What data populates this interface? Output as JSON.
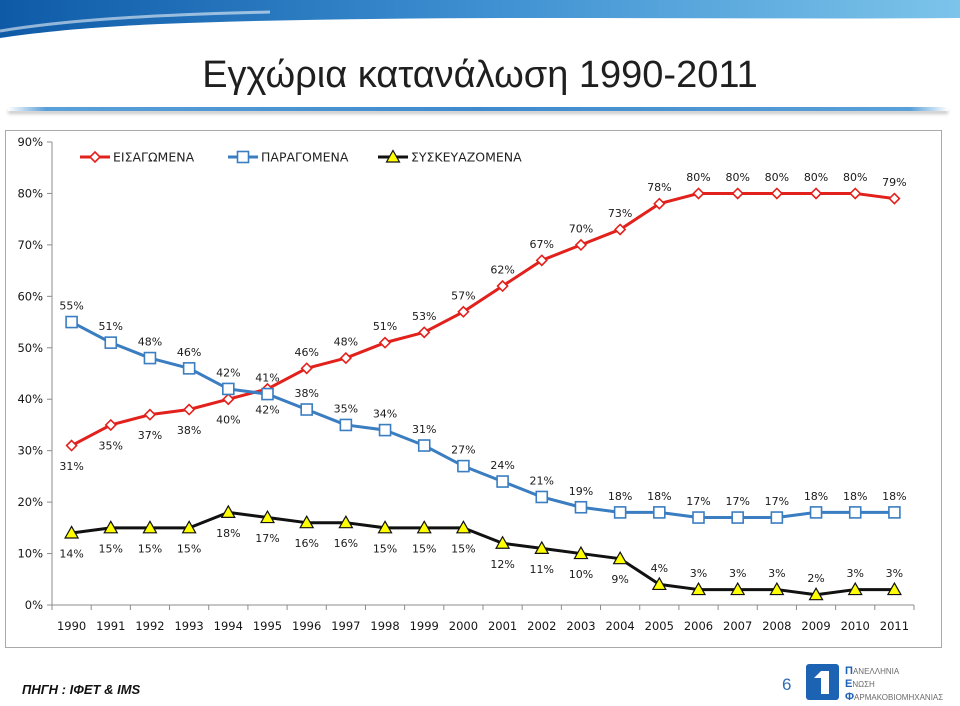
{
  "slide": {
    "title": "Εγχώρια κατανάλωση 1990-2011",
    "source": "ΠΗΓΗ : ΙΦΕΤ & IMS",
    "page_number": "6",
    "logo": {
      "lines": [
        "ΠΑΝΕΛΛΗΝΙΑ",
        "ΕΝΩΣΗ",
        "ΦΑΡΜΑΚΟΒΙΟΜΗΧΑΝΙΑΣ"
      ],
      "color": "#1d63b3"
    }
  },
  "chart_data": {
    "type": "line",
    "x": [
      "1990",
      "1991",
      "1992",
      "1993",
      "1994",
      "1995",
      "1996",
      "1997",
      "1998",
      "1999",
      "2000",
      "2001",
      "2002",
      "2003",
      "2004",
      "2005",
      "2006",
      "2007",
      "2008",
      "2009",
      "2010",
      "2011"
    ],
    "ylim": [
      0,
      90
    ],
    "y_ticks": [
      0,
      10,
      20,
      30,
      40,
      50,
      60,
      70,
      80,
      90
    ],
    "y_tick_labels": [
      "0%",
      "10%",
      "20%",
      "30%",
      "40%",
      "50%",
      "60%",
      "70%",
      "80%",
      "90%"
    ],
    "grid": false,
    "legend": "top-left",
    "series": [
      {
        "name": "ΕΙΣΑΓΩΜΕΝΑ",
        "color": "#e2211c",
        "marker": "diamond",
        "values": [
          31,
          35,
          37,
          38,
          40,
          42,
          46,
          48,
          51,
          53,
          57,
          62,
          67,
          70,
          73,
          78,
          80,
          80,
          80,
          80,
          80,
          79
        ],
        "labels": [
          "31%",
          "35%",
          "37%",
          "38%",
          "40%",
          "42%",
          "46%",
          "48%",
          "51%",
          "53%",
          "57%",
          "62%",
          "67%",
          "70%",
          "73%",
          "78%",
          "80%",
          "80%",
          "80%",
          "80%",
          "80%",
          "79%"
        ]
      },
      {
        "name": "ΠΑΡΑΓΟΜΕΝΑ",
        "color": "#3a7dc0",
        "marker": "square",
        "values": [
          55,
          51,
          48,
          46,
          42,
          41,
          38,
          35,
          34,
          31,
          27,
          24,
          21,
          19,
          18,
          18,
          17,
          17,
          17,
          18,
          18,
          18
        ],
        "labels": [
          "55%",
          "51%",
          "48%",
          "46%",
          "42%",
          "41%",
          "38%",
          "35%",
          "34%",
          "31%",
          "27%",
          "24%",
          "21%",
          "19%",
          "18%",
          "18%",
          "17%",
          "17%",
          "17%",
          "18%",
          "18%",
          "18%"
        ]
      },
      {
        "name": "ΣΥΣΚΕΥΑΖΟΜΕΝΑ",
        "color": "#111111",
        "marker": "triangle",
        "marker_fill": "#ffff00",
        "values": [
          14,
          15,
          15,
          15,
          18,
          17,
          16,
          16,
          15,
          15,
          15,
          12,
          11,
          10,
          9,
          4,
          3,
          3,
          3,
          2,
          3,
          3
        ],
        "labels": [
          "14%",
          "15%",
          "15%",
          "15%",
          "18%",
          "17%",
          "16%",
          "16%",
          "15%",
          "15%",
          "15%",
          "12%",
          "11%",
          "10%",
          "9%",
          "4%",
          "3%",
          "3%",
          "3%",
          "2%",
          "3%",
          "3%"
        ]
      }
    ]
  }
}
